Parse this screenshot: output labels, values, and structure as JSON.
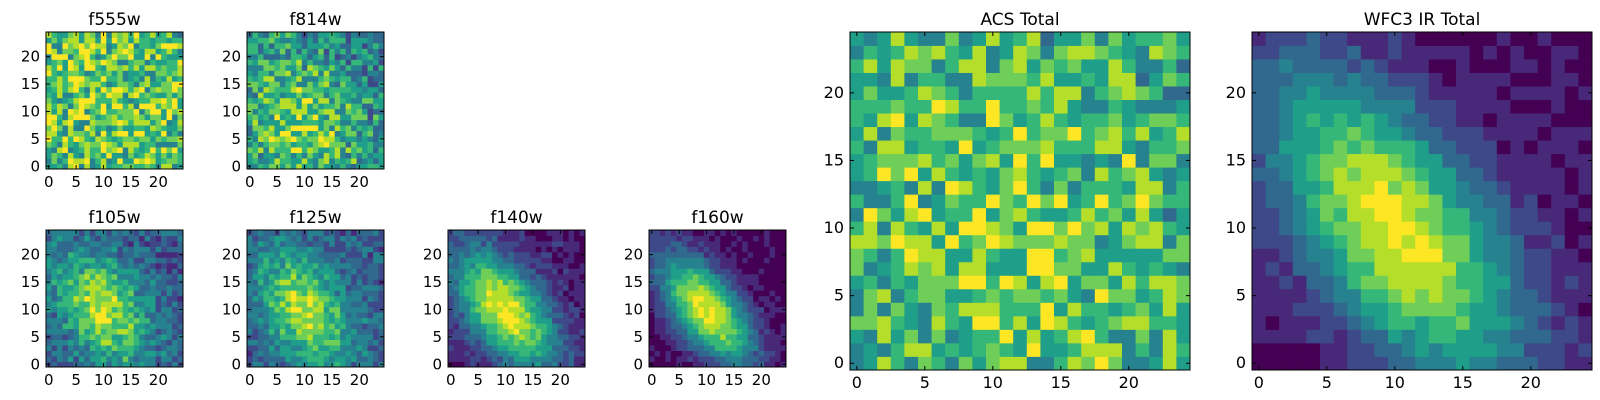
{
  "figure": {
    "background": "#ffffff"
  },
  "colormap": [
    "#440154",
    "#482878",
    "#3e4989",
    "#31688e",
    "#26828e",
    "#1f9e89",
    "#35b779",
    "#6ece58",
    "#b5de2b",
    "#fde725"
  ],
  "chart_data": [
    {
      "type": "heatmap",
      "title": "f555w",
      "grid": false,
      "xlim": [
        -0.5,
        24.5
      ],
      "ylim": [
        -0.5,
        24.5
      ],
      "xticks": [
        0,
        5,
        10,
        15,
        20
      ],
      "yticks": [
        0,
        5,
        10,
        15,
        20
      ],
      "rows": 25,
      "cols": 25,
      "center": [
        10,
        10
      ],
      "sx": 14,
      "sy": 14,
      "angle": 0,
      "peak": 0.12,
      "base": 0.62,
      "noise": 0.28,
      "seed": 11
    },
    {
      "type": "heatmap",
      "title": "f814w",
      "grid": false,
      "xlim": [
        -0.5,
        24.5
      ],
      "ylim": [
        -0.5,
        24.5
      ],
      "xticks": [
        0,
        5,
        10,
        15,
        20
      ],
      "yticks": [
        0,
        5,
        10,
        15,
        20
      ],
      "rows": 25,
      "cols": 25,
      "center": [
        9,
        8
      ],
      "sx": 8,
      "sy": 10,
      "angle": 0.6,
      "peak": 0.35,
      "base": 0.42,
      "noise": 0.24,
      "seed": 23
    },
    {
      "type": "heatmap",
      "title": "f105w",
      "grid": false,
      "xlim": [
        -0.5,
        24.5
      ],
      "ylim": [
        -0.5,
        24.5
      ],
      "xticks": [
        0,
        5,
        10,
        15,
        20
      ],
      "yticks": [
        0,
        5,
        10,
        15,
        20
      ],
      "rows": 25,
      "cols": 25,
      "center": [
        10,
        10
      ],
      "sx": 5,
      "sy": 8,
      "angle": 0.5,
      "peak": 0.55,
      "base": 0.3,
      "noise": 0.15,
      "seed": 37
    },
    {
      "type": "heatmap",
      "title": "f125w",
      "grid": false,
      "xlim": [
        -0.5,
        24.5
      ],
      "ylim": [
        -0.5,
        24.5
      ],
      "xticks": [
        0,
        5,
        10,
        15,
        20
      ],
      "yticks": [
        0,
        5,
        10,
        15,
        20
      ],
      "rows": 25,
      "cols": 25,
      "center": [
        10,
        10
      ],
      "sx": 5,
      "sy": 8,
      "angle": 0.5,
      "peak": 0.55,
      "base": 0.3,
      "noise": 0.13,
      "seed": 41
    },
    {
      "type": "heatmap",
      "title": "f140w",
      "grid": false,
      "xlim": [
        -0.5,
        24.5
      ],
      "ylim": [
        -0.5,
        24.5
      ],
      "xticks": [
        0,
        5,
        10,
        15,
        20
      ],
      "yticks": [
        0,
        5,
        10,
        15,
        20
      ],
      "rows": 25,
      "cols": 25,
      "center": [
        10,
        10
      ],
      "sx": 4.5,
      "sy": 9,
      "angle": 0.65,
      "peak": 0.8,
      "base": 0.13,
      "noise": 0.08,
      "seed": 53
    },
    {
      "type": "heatmap",
      "title": "f160w",
      "grid": false,
      "xlim": [
        -0.5,
        24.5
      ],
      "ylim": [
        -0.5,
        24.5
      ],
      "xticks": [
        0,
        5,
        10,
        15,
        20
      ],
      "yticks": [
        0,
        5,
        10,
        15,
        20
      ],
      "rows": 25,
      "cols": 25,
      "center": [
        10,
        10
      ],
      "sx": 4,
      "sy": 8.5,
      "angle": 0.65,
      "peak": 0.88,
      "base": 0.06,
      "noise": 0.06,
      "seed": 67
    },
    {
      "type": "heatmap",
      "title": "ACS Total",
      "grid": false,
      "xlim": [
        -0.5,
        24.5
      ],
      "ylim": [
        -0.5,
        24.5
      ],
      "xticks": [
        0,
        5,
        10,
        15,
        20
      ],
      "yticks": [
        0,
        5,
        10,
        15,
        20
      ],
      "rows": 25,
      "cols": 25,
      "center": [
        11,
        9
      ],
      "sx": 9,
      "sy": 12,
      "angle": 0.4,
      "peak": 0.22,
      "base": 0.55,
      "noise": 0.26,
      "seed": 79
    },
    {
      "type": "heatmap",
      "title": "WFC3 IR Total",
      "grid": false,
      "xlim": [
        -0.5,
        24.5
      ],
      "ylim": [
        -0.5,
        24.5
      ],
      "xticks": [
        0,
        5,
        10,
        15,
        20
      ],
      "yticks": [
        0,
        5,
        10,
        15,
        20
      ],
      "rows": 25,
      "cols": 25,
      "center": [
        10,
        10
      ],
      "sx": 4.5,
      "sy": 9.5,
      "angle": 0.6,
      "peak": 0.85,
      "base": 0.08,
      "noise": 0.06,
      "seed": 97
    }
  ]
}
